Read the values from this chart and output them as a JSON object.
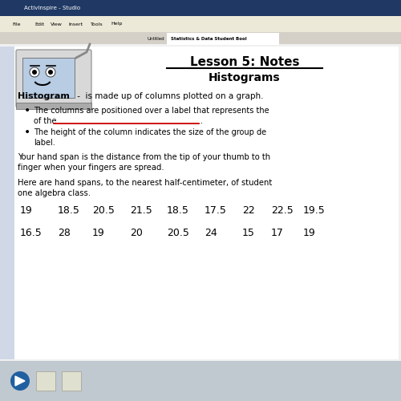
{
  "title_line1": "Lesson 5: Notes",
  "title_line2": "Histograms",
  "bg_color": "#f0f0f0",
  "content_bg": "#ffffff",
  "definition_bold": "Histogram",
  "definition_rest": " -  is made up of columns plotted on a graph.",
  "bullet1_line1": "The columns are positioned over a label that represents the",
  "bullet1_line2": "of the",
  "bullet2_line1": "The height of the column indicates the size of the group de",
  "bullet2_line2": "label.",
  "para1_line1": "Your hand span is the distance from the tip of your thumb to th",
  "para1_line2": "finger when your fingers are spread.",
  "para2_line1": "Here are hand spans, to the nearest half-centimeter, of student",
  "para2_line2": "one algebra class.",
  "data_row1": [
    "19",
    "18.5",
    "20.5",
    "21.5",
    "18.5",
    "17.5",
    "22",
    "22.5",
    "19.5"
  ],
  "data_row2": [
    "16.5",
    "28",
    "19",
    "20",
    "20.5",
    "24",
    "15",
    "17",
    "19"
  ],
  "font_color": "#000000",
  "underline_color": "#cc0000",
  "title_bar_color": "#1f3864",
  "menu_bar_color": "#ece9d8",
  "tab_bar_color": "#d4d0c8",
  "sidebar_color": "#d0d8e8",
  "bottom_bar_color": "#c0c8d0",
  "menu_items": [
    "File",
    "Edit",
    "View",
    "Insert",
    "Tools",
    "Help"
  ],
  "menu_x": [
    15,
    43,
    63,
    85,
    113,
    138
  ],
  "tab1_label": "Untitled",
  "tab2_label": "Statistics & Data Student Bool",
  "data_row1_x": [
    25,
    72,
    115,
    162,
    208,
    255,
    302,
    338,
    378
  ],
  "data_row2_x": [
    25,
    72,
    115,
    162,
    208,
    255,
    302,
    338,
    378
  ]
}
